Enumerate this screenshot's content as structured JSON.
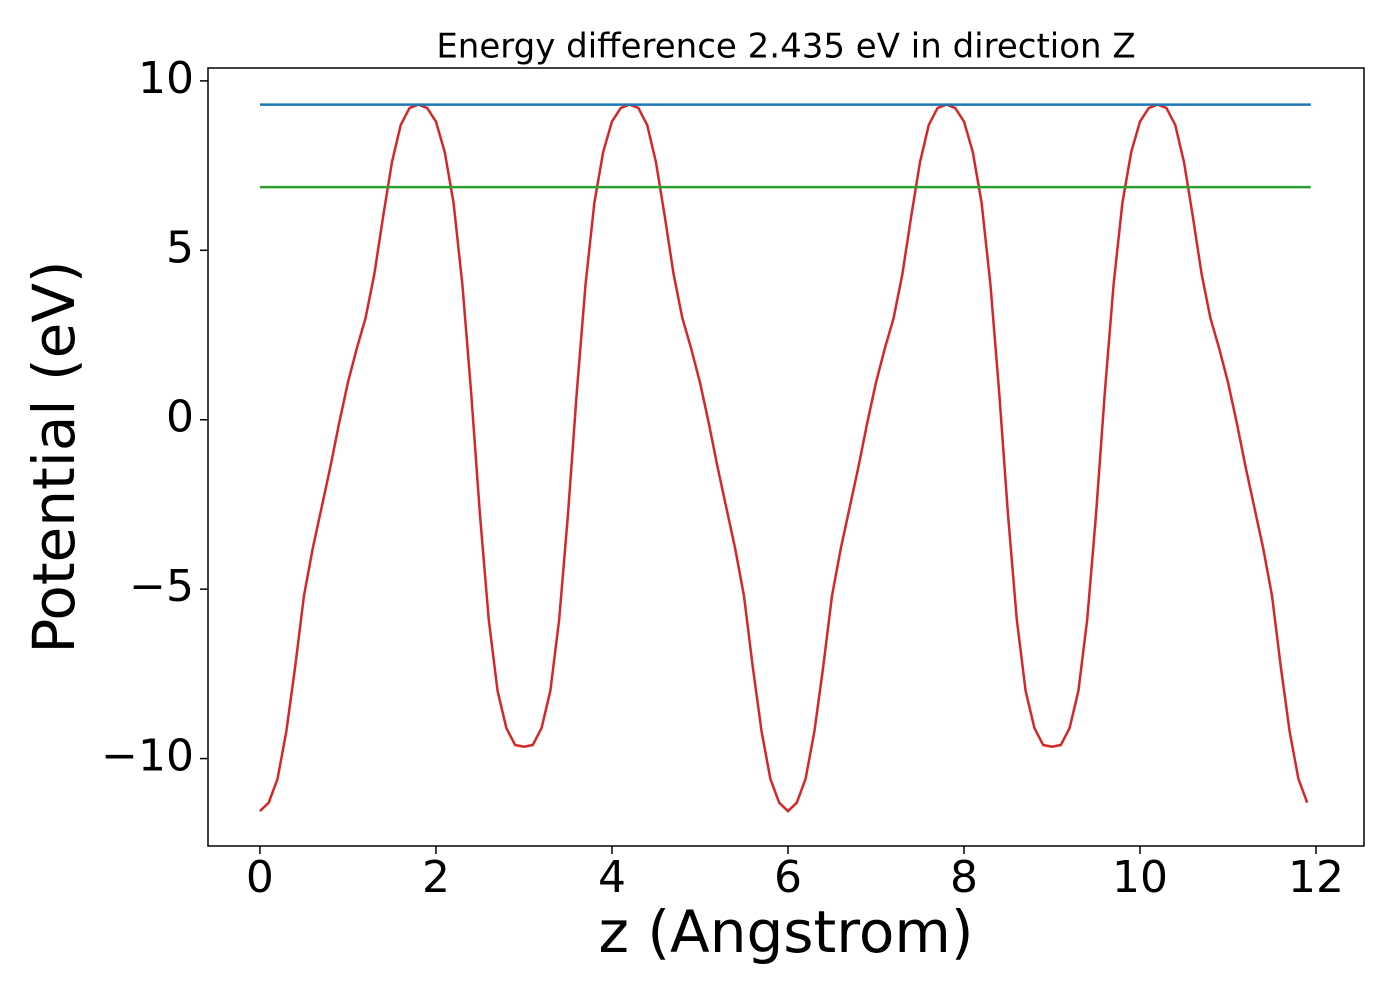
{
  "chart_data": {
    "type": "line",
    "title": "Energy difference 2.435 eV in direction Z",
    "xlabel": "z (Angstrom)",
    "ylabel": "Potential (eV)",
    "xlim": [
      -0.59,
      12.545
    ],
    "ylim": [
      -12.58,
      10.38
    ],
    "xticks": [
      0,
      2,
      4,
      6,
      8,
      10,
      12
    ],
    "yticks": [
      {
        "value": -10,
        "label": "−10"
      },
      {
        "value": -5,
        "label": "−5"
      },
      0,
      5,
      10
    ],
    "grid": false,
    "series": [
      {
        "color": "#d62728",
        "x": [
          0,
          0.1,
          0.2,
          0.3,
          0.4,
          0.5,
          0.6,
          0.7,
          0.8,
          0.9,
          1,
          1.1,
          1.2,
          1.3,
          1.4,
          1.5,
          1.6,
          1.7,
          1.8,
          1.9,
          2,
          2.1,
          2.2,
          2.3,
          2.4,
          2.5,
          2.6,
          2.7,
          2.8,
          2.9,
          3,
          3.1,
          3.2,
          3.3,
          3.4,
          3.5,
          3.6,
          3.7,
          3.8,
          3.9,
          4,
          4.1,
          4.2,
          4.3,
          4.4,
          4.5,
          4.6,
          4.7,
          4.8,
          4.9,
          5,
          5.1,
          5.2,
          5.3,
          5.4,
          5.5,
          5.6,
          5.7,
          5.8,
          5.9,
          6,
          6.1,
          6.2,
          6.3,
          6.4,
          6.5,
          6.6,
          6.7,
          6.8,
          6.9,
          7,
          7.1,
          7.2,
          7.3,
          7.4,
          7.5,
          7.6,
          7.7,
          7.8,
          7.9,
          8,
          8.1,
          8.2,
          8.3,
          8.4,
          8.5,
          8.6,
          8.7,
          8.8,
          8.9,
          9,
          9.1,
          9.2,
          9.3,
          9.4,
          9.5,
          9.6,
          9.7,
          9.8,
          9.9,
          10,
          10.1,
          10.2,
          10.3,
          10.4,
          10.5,
          10.6,
          10.7,
          10.8,
          10.9,
          11,
          11.1,
          11.2,
          11.3,
          11.4,
          11.5,
          11.6,
          11.7,
          11.8,
          11.9
        ],
        "values": [
          -11.55,
          -11.3,
          -10.6,
          -9.2,
          -7.3,
          -5.2,
          -3.8,
          -2.6,
          -1.4,
          -0.1,
          1.1,
          2.1,
          3.0,
          4.3,
          6.0,
          7.6,
          8.7,
          9.2,
          9.3,
          9.2,
          8.8,
          7.9,
          6.4,
          4.0,
          0.8,
          -2.8,
          -5.9,
          -8.0,
          -9.1,
          -9.6,
          -9.65,
          -9.6,
          -9.1,
          -8.0,
          -5.9,
          -2.8,
          0.8,
          4.0,
          6.4,
          7.9,
          8.8,
          9.2,
          9.3,
          9.2,
          8.7,
          7.6,
          6.0,
          4.3,
          3.0,
          2.1,
          1.1,
          -0.1,
          -1.4,
          -2.6,
          -3.8,
          -5.2,
          -7.3,
          -9.2,
          -10.6,
          -11.3,
          -11.55,
          -11.3,
          -10.6,
          -9.2,
          -7.3,
          -5.2,
          -3.8,
          -2.6,
          -1.4,
          -0.1,
          1.1,
          2.1,
          3.0,
          4.3,
          6.0,
          7.6,
          8.7,
          9.2,
          9.3,
          9.2,
          8.8,
          7.9,
          6.4,
          4.0,
          0.8,
          -2.8,
          -5.9,
          -8.0,
          -9.1,
          -9.6,
          -9.65,
          -9.6,
          -9.1,
          -8.0,
          -5.9,
          -2.8,
          0.8,
          4.0,
          6.4,
          7.9,
          8.8,
          9.2,
          9.3,
          9.2,
          8.7,
          7.6,
          6.0,
          4.3,
          3.0,
          2.1,
          1.1,
          -0.1,
          -1.4,
          -2.6,
          -3.8,
          -5.2,
          -7.3,
          -9.2,
          -10.6,
          -11.3
        ]
      },
      {
        "color": "#1f77b4",
        "x": [
          0,
          11.94
        ],
        "values": [
          9.3,
          9.3
        ]
      },
      {
        "color": "#2ca02c",
        "x": [
          0,
          11.94
        ],
        "values": [
          6.865,
          6.865
        ]
      }
    ]
  }
}
